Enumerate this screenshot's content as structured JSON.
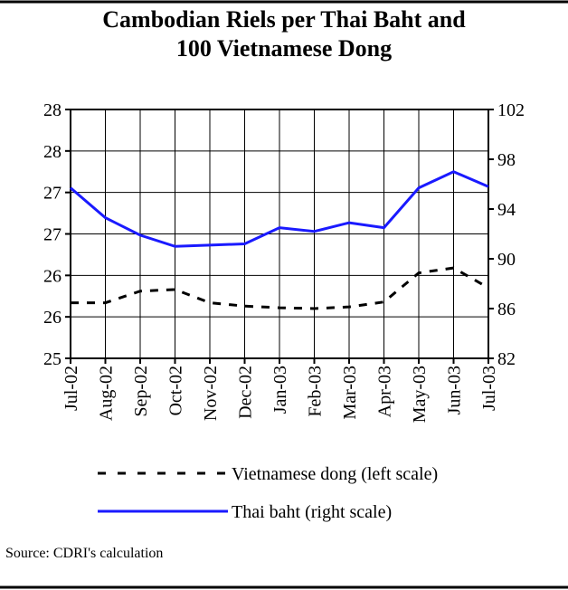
{
  "chart_data": {
    "type": "line",
    "title": "Cambodian Riels per Thai Baht and 100 Vietnamese Dong",
    "categories": [
      "Jul-02",
      "Aug-02",
      "Sep-02",
      "Oct-02",
      "Nov-02",
      "Dec-02",
      "Jan-03",
      "Feb-03",
      "Mar-03",
      "Apr-03",
      "May-03",
      "Jun-03",
      "Jul-03"
    ],
    "series": [
      {
        "name": "Vietnamese dong (left scale)",
        "color": "#000000",
        "dash": true,
        "values": [
          25.67,
          25.67,
          25.81,
          25.83,
          25.67,
          25.63,
          25.61,
          25.6,
          25.62,
          25.68,
          26.03,
          26.09,
          25.85
        ]
      },
      {
        "name": "Thai baht (right scale)",
        "color": "#1a1aff",
        "axis": "y2",
        "values": [
          95.7,
          93.3,
          91.9,
          91.0,
          91.1,
          91.2,
          92.5,
          92.2,
          92.9,
          92.5,
          95.7,
          97.0,
          95.8
        ]
      }
    ],
    "ylim": [
      25,
      28
    ],
    "yticks": [
      25,
      {
        "value": 25.5,
        "label": "26"
      },
      26,
      {
        "value": 26.5,
        "label": "27"
      },
      27,
      {
        "value": 27.5,
        "label": "28"
      },
      28
    ],
    "y2lim": [
      82,
      102
    ],
    "y2ticks": [
      82,
      86,
      90,
      94,
      98,
      102
    ],
    "grid": true,
    "source": "Source: CDRI's calculation"
  }
}
